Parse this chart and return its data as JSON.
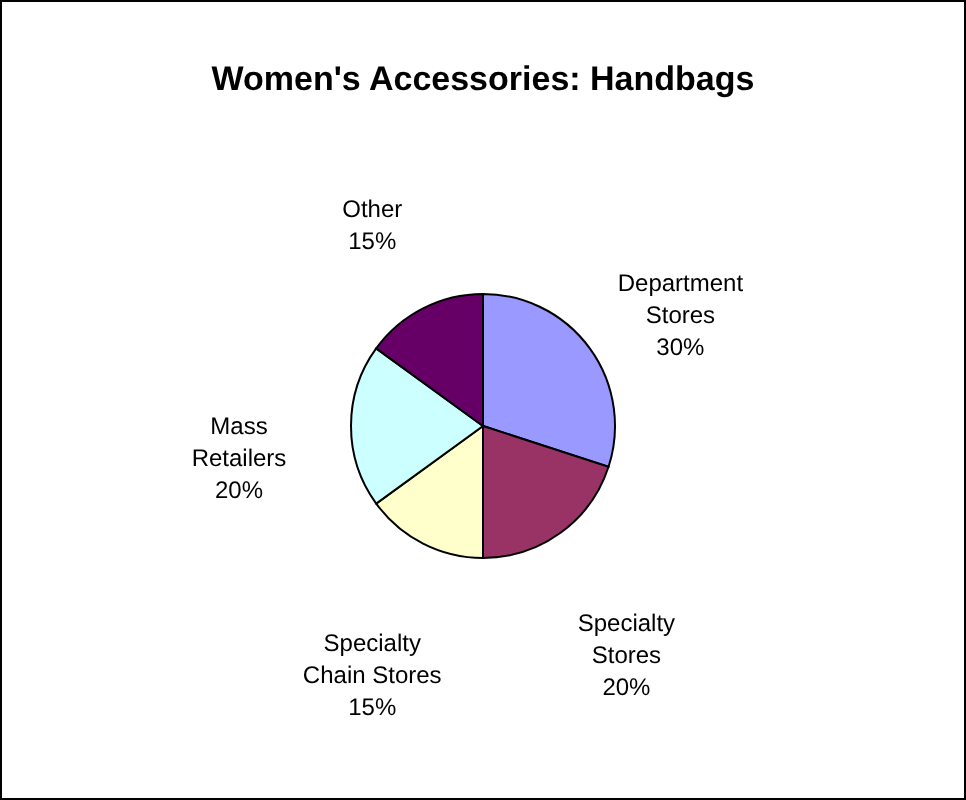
{
  "chart_data": {
    "type": "pie",
    "title": "Women's Accessories: Handbags",
    "categories": [
      "Department Stores",
      "Specialty Stores",
      "Specialty Chain Stores",
      "Mass Retailers",
      "Other"
    ],
    "values": [
      30,
      20,
      15,
      20,
      15
    ],
    "value_labels": [
      "30%",
      "20%",
      "15%",
      "20%",
      "15%"
    ],
    "colors": [
      "#9999ff",
      "#993366",
      "#ffffcc",
      "#ccffff",
      "#660066"
    ]
  }
}
